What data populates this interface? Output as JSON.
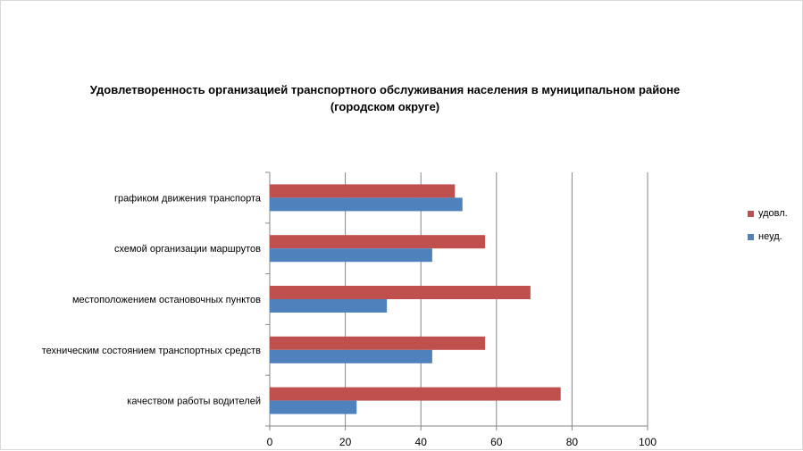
{
  "chart_data": {
    "type": "bar",
    "orientation": "horizontal",
    "title": [
      "Удовлетворенность организацией транспортного обслуживания населения в муниципальном районе",
      "(городском округе)"
    ],
    "categories": [
      "графиком движения  транспорта",
      "схемой организации маршрутов",
      "местоположением  остановочных пунктов",
      "техническим  состоянием транспортных средств",
      "качеством  работы водителей"
    ],
    "series": [
      {
        "name": "удовл.",
        "color": "#c0504d",
        "values": [
          49,
          57,
          69,
          57,
          77
        ]
      },
      {
        "name": "неуд.",
        "color": "#4f81bd",
        "values": [
          51,
          43,
          31,
          43,
          23
        ]
      }
    ],
    "xlim": [
      0,
      100
    ],
    "xticks": [
      0,
      20,
      40,
      60,
      80,
      100
    ],
    "grid": true,
    "legend_position": "right"
  }
}
